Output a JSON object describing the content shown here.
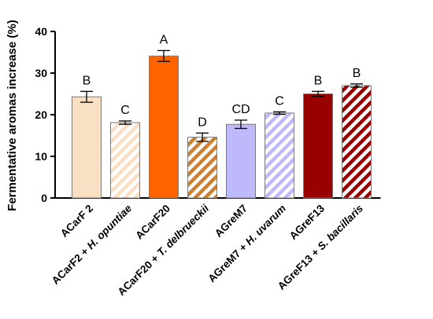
{
  "chart_data": {
    "type": "bar",
    "ylabel": "Fermentative aromas increase (%)",
    "ylim": [
      0,
      40
    ],
    "yticks": [
      0,
      10,
      20,
      30,
      40
    ],
    "grid": false,
    "bars": [
      {
        "label": "ACarF 2",
        "label_parts": [
          {
            "t": "ACarF 2",
            "i": false
          }
        ],
        "value": 24.3,
        "error": 1.3,
        "letter": "B",
        "color": "#f9dfc4",
        "hatched": false
      },
      {
        "label": "ACarF2 + H. opuntiae",
        "label_parts": [
          {
            "t": "ACarF2 + ",
            "i": false
          },
          {
            "t": "H. opuntiae",
            "i": true
          }
        ],
        "value": 18.1,
        "error": 0.4,
        "letter": "C",
        "color": "#f9dfc4",
        "hatched": true
      },
      {
        "label": "ACarF20",
        "label_parts": [
          {
            "t": "ACarF20",
            "i": false
          }
        ],
        "value": 34.1,
        "error": 1.3,
        "letter": "A",
        "color": "#fd6400",
        "hatched": false
      },
      {
        "label": "ACarF20 + T. delbrueckii",
        "label_parts": [
          {
            "t": "ACarF20 + ",
            "i": false
          },
          {
            "t": "T. delbrueckii",
            "i": true
          }
        ],
        "value": 14.6,
        "error": 1.0,
        "letter": "D",
        "color": "#cc7f2e",
        "hatched": true
      },
      {
        "label": "AGreM7",
        "label_parts": [
          {
            "t": "AGreM7",
            "i": false
          }
        ],
        "value": 17.7,
        "error": 1.0,
        "letter": "CD",
        "color": "#bdb9fb",
        "hatched": false
      },
      {
        "label": "AGreM7 + H. uvarum",
        "label_parts": [
          {
            "t": "AGreM7 + ",
            "i": false
          },
          {
            "t": "H. uvarum",
            "i": true
          }
        ],
        "value": 20.4,
        "error": 0.3,
        "letter": "C",
        "color": "#bdb9fb",
        "hatched": true
      },
      {
        "label": "AGreF13",
        "label_parts": [
          {
            "t": "AGreF13",
            "i": false
          }
        ],
        "value": 25.0,
        "error": 0.6,
        "letter": "B",
        "color": "#990000",
        "hatched": false
      },
      {
        "label": "AGreF13 + S. bacillaris",
        "label_parts": [
          {
            "t": "AGreF13 + ",
            "i": false
          },
          {
            "t": "S. bacillaris",
            "i": true
          }
        ],
        "value": 27.0,
        "error": 0.4,
        "letter": "B",
        "color": "#990000",
        "hatched": true
      }
    ]
  }
}
